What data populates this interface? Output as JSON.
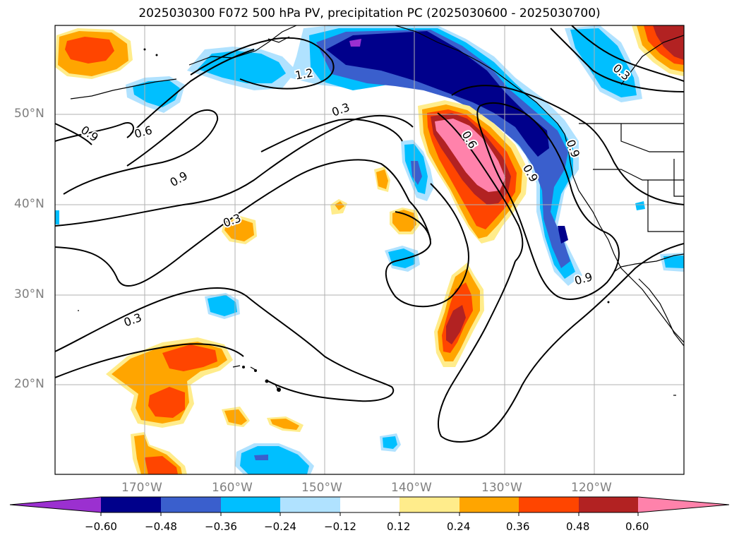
{
  "title": "2025030300 F072 500 hPa PV, precipitation PC (2025030600 - 2025030700)",
  "map": {
    "lat_labels": [
      "50°N",
      "40°N",
      "30°N",
      "20°N"
    ],
    "lon_labels": [
      "170°W",
      "160°W",
      "150°W",
      "140°W",
      "130°W",
      "120°W"
    ],
    "grid_color": "#b0b0b0"
  },
  "contour_labels": [
    "1.2",
    "0.3",
    "0.6",
    "0.9",
    "0.9",
    "0.3",
    "0.3",
    "0.6",
    "0.9",
    "0.9",
    "0.3",
    "0.9"
  ],
  "colorbar": {
    "ticks": [
      "−0.60",
      "−0.48",
      "−0.36",
      "−0.24",
      "−0.12",
      "0.12",
      "0.24",
      "0.36",
      "0.48",
      "0.60"
    ],
    "colors": [
      "#9b30d0",
      "#00008b",
      "#3a5fcd",
      "#00bfff",
      "#b0e2ff",
      "#ffffff",
      "#ffec8b",
      "#ffa500",
      "#ff4500",
      "#b22222",
      "#ff82ab"
    ]
  }
}
